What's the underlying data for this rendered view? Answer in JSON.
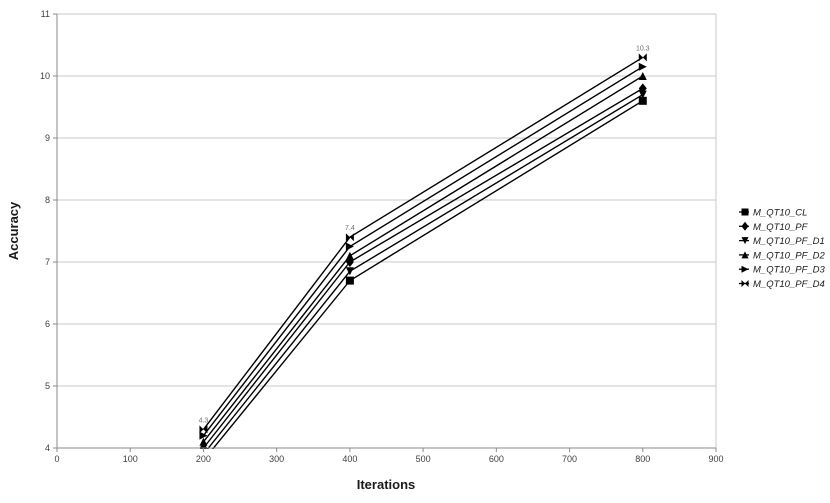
{
  "page": {
    "background": "#ffffff"
  },
  "chart_data": {
    "type": "line",
    "title": "",
    "xlabel": "Iterations",
    "ylabel": "Accuracy",
    "xlim": [
      0,
      900
    ],
    "ylim": [
      4,
      11
    ],
    "x_ticks": [
      0,
      100,
      200,
      300,
      400,
      500,
      600,
      700,
      800,
      900
    ],
    "y_ticks": [
      4,
      5,
      6,
      7,
      8,
      9,
      10,
      11
    ],
    "grid": "horizontal",
    "legend_position": "right",
    "x": [
      200,
      400,
      800
    ],
    "series": [
      {
        "name": "M_QT10_CL",
        "marker": "square",
        "values": [
          3.8,
          6.7,
          9.6
        ]
      },
      {
        "name": "M_QT10_PF",
        "marker": "diamond",
        "values": [
          4.0,
          7.0,
          9.8
        ]
      },
      {
        "name": "M_QT10_PF_D1",
        "marker": "triangle-down",
        "values": [
          3.9,
          6.85,
          9.7
        ]
      },
      {
        "name": "M_QT10_PF_D2",
        "marker": "triangle-up",
        "values": [
          4.1,
          7.1,
          10.0
        ]
      },
      {
        "name": "M_QT10_PF_D3",
        "marker": "triangle-right",
        "values": [
          4.2,
          7.25,
          10.15
        ]
      },
      {
        "name": "M_QT10_PF_D4",
        "marker": "bowtie",
        "values": [
          4.3,
          7.4,
          10.3
        ],
        "point_labels": [
          "4.3",
          "7.4",
          "10.3"
        ]
      }
    ],
    "colors": {
      "line": "#000000",
      "marker": "#000000",
      "grid": "#c8c8c8",
      "axis": "#8a8a8a",
      "tick_label": "#404040",
      "point_label": "#707070"
    }
  }
}
